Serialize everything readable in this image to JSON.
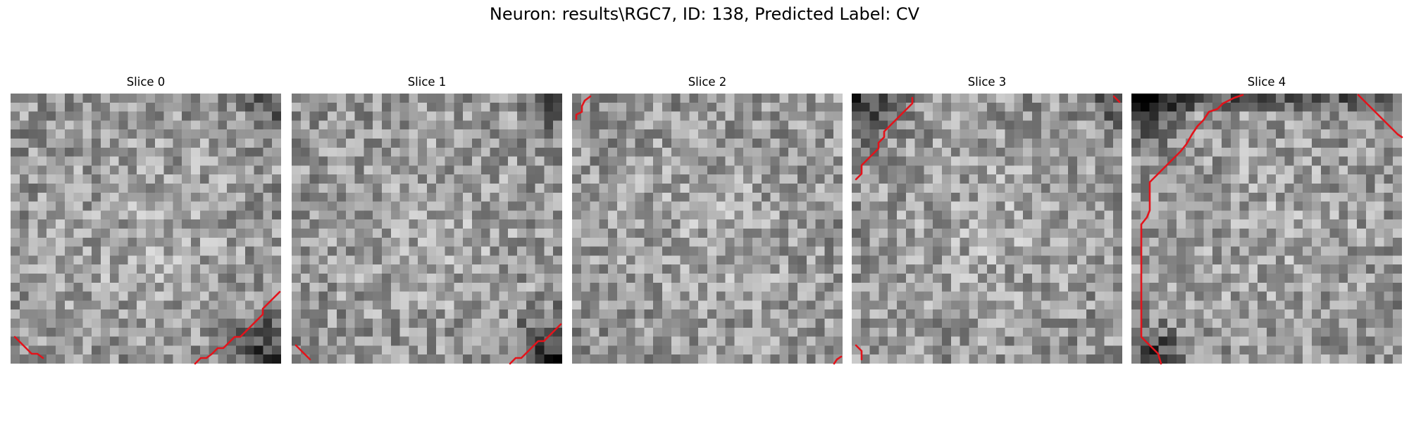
{
  "figure": {
    "title": "Neuron: results\\RGC7, ID: 138, Predicted Label: CV"
  },
  "slices": [
    {
      "title": "Slice 0",
      "seed": 11,
      "dark_edges": [
        "bottom-right",
        "top-right"
      ]
    },
    {
      "title": "Slice 1",
      "seed": 23,
      "dark_edges": [
        "bottom-right",
        "top-right"
      ]
    },
    {
      "title": "Slice 2",
      "seed": 37,
      "dark_edges": []
    },
    {
      "title": "Slice 3",
      "seed": 41,
      "dark_edges": [
        "top-left",
        "top-right"
      ]
    },
    {
      "title": "Slice 4",
      "seed": 53,
      "dark_edges": [
        "top",
        "bottom-left",
        "top-left"
      ]
    }
  ],
  "colors": {
    "contour": "#e3131b",
    "colormap": "gray"
  }
}
